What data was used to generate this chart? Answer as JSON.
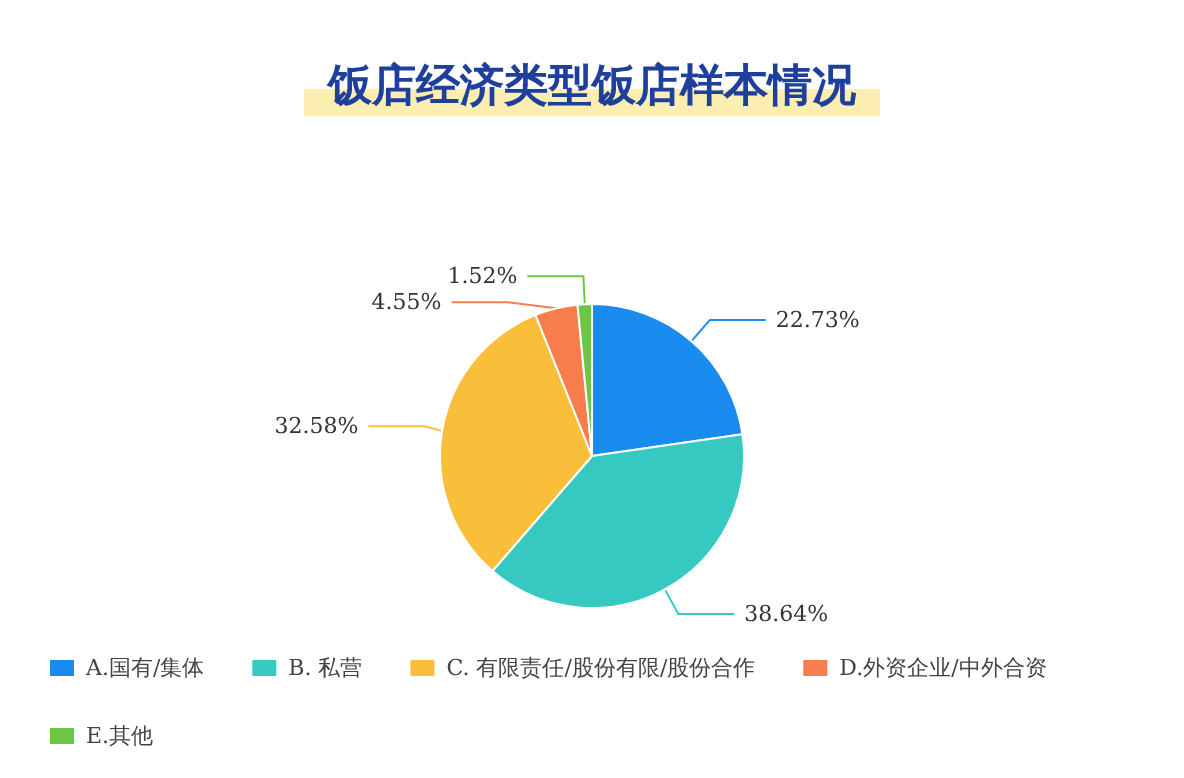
{
  "chart_data": {
    "type": "pie",
    "title": "饭店经济类型饭店样本情况",
    "categories": [
      "A.国有/集体",
      "B. 私营",
      "C. 有限责任/股份有限/股份合作",
      "D.外资企业/中外合资",
      "E.其他"
    ],
    "values": [
      22.73,
      38.64,
      32.58,
      4.55,
      1.52
    ],
    "colors": [
      "#1a8cf0",
      "#35c9c1",
      "#f9bf3b",
      "#f77d4c",
      "#6cc644"
    ],
    "value_labels": [
      "22.73%",
      "38.64%",
      "32.58%",
      "4.55%",
      "1.52%"
    ],
    "legend": "bottom left"
  }
}
